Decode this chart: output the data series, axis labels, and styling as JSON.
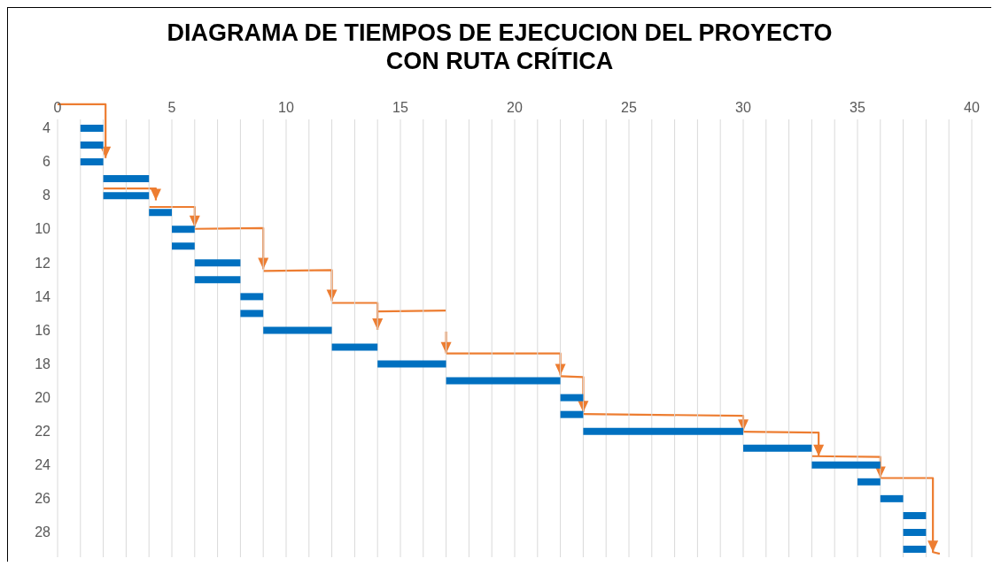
{
  "chart_data": {
    "type": "bar",
    "orientation": "horizontal",
    "title": "DIAGRAMA DE TIEMPOS DE EJECUCION DEL PROYECTO\nCON RUTA CRÍTICA",
    "categories": [
      "4",
      null,
      "6",
      null,
      "8",
      null,
      "10",
      null,
      "12",
      null,
      "14",
      null,
      "16",
      null,
      "18",
      null,
      "20",
      null,
      "22",
      null,
      "24",
      null,
      "26",
      null,
      "28",
      null
    ],
    "base": [
      1,
      1,
      1,
      2,
      2,
      4,
      5,
      5,
      6,
      6,
      8,
      8,
      9,
      12,
      14,
      17,
      22,
      22,
      23,
      30,
      33,
      35,
      36,
      37,
      37,
      37
    ],
    "values": [
      1,
      1,
      1,
      2,
      2,
      1,
      1,
      1,
      2,
      2,
      1,
      1,
      3,
      2,
      3,
      5,
      1,
      1,
      7,
      3,
      3,
      1,
      1,
      1,
      1,
      1
    ],
    "color": "#0070c0",
    "xlim": [
      0,
      40
    ],
    "xticks": [
      0,
      {
        "value": 1,
        "label": null
      },
      {
        "value": 2,
        "label": null
      },
      {
        "value": 3,
        "label": null
      },
      {
        "value": 4,
        "label": null
      },
      5,
      {
        "value": 6,
        "label": null
      },
      {
        "value": 7,
        "label": null
      },
      {
        "value": 8,
        "label": null
      },
      {
        "value": 9,
        "label": null
      },
      10,
      {
        "value": 11,
        "label": null
      },
      {
        "value": 12,
        "label": null
      },
      {
        "value": 13,
        "label": null
      },
      {
        "value": 14,
        "label": null
      },
      15,
      {
        "value": 16,
        "label": null
      },
      {
        "value": 17,
        "label": null
      },
      {
        "value": 18,
        "label": null
      },
      {
        "value": 19,
        "label": null
      },
      20,
      {
        "value": 21,
        "label": null
      },
      {
        "value": 22,
        "label": null
      },
      {
        "value": 23,
        "label": null
      },
      {
        "value": 24,
        "label": null
      },
      25,
      {
        "value": 26,
        "label": null
      },
      {
        "value": 27,
        "label": null
      },
      {
        "value": 28,
        "label": null
      },
      {
        "value": 29,
        "label": null
      },
      30,
      {
        "value": 31,
        "label": null
      },
      {
        "value": 32,
        "label": null
      },
      {
        "value": 33,
        "label": null
      },
      {
        "value": 34,
        "label": null
      },
      35,
      {
        "value": 36,
        "label": null
      },
      {
        "value": 37,
        "label": null
      },
      {
        "value": 38,
        "label": null
      },
      {
        "value": 39,
        "label": null
      },
      40
    ],
    "grid": "x"
  }
}
